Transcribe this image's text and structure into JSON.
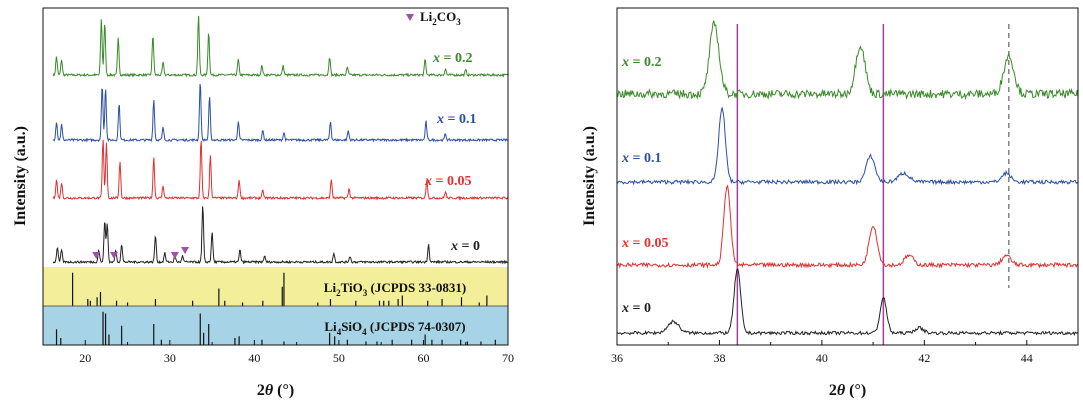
{
  "chart_data": [
    {
      "type": "line",
      "panel": "left",
      "xlabel_prefix": "2",
      "xlabel_italic": "θ",
      "xlabel_suffix": " (°)",
      "ylabel": "Intensity (a.u.)",
      "xlim": [
        15,
        70
      ],
      "xticks": [
        "20",
        "30",
        "40",
        "50",
        "60",
        "70"
      ],
      "legend": [
        {
          "marker": "▼",
          "label": "Li",
          "sub1": "2",
          "mid": "CO",
          "sub2": "3",
          "color": "#a24fa8"
        }
      ],
      "series": [
        {
          "name": "x = 0.2",
          "label_var": "x",
          "label_val": " = 0.2",
          "color": "#3a8a2a",
          "peaks": [
            [
              16.6,
              0.3
            ],
            [
              17.2,
              0.25
            ],
            [
              21.9,
              0.9
            ],
            [
              22.3,
              0.85
            ],
            [
              23.9,
              0.6
            ],
            [
              28.0,
              0.65
            ],
            [
              29.2,
              0.2
            ],
            [
              33.4,
              0.95
            ],
            [
              34.6,
              0.7
            ],
            [
              38.1,
              0.25
            ],
            [
              40.9,
              0.15
            ],
            [
              43.4,
              0.15
            ],
            [
              48.9,
              0.3
            ],
            [
              51.0,
              0.12
            ],
            [
              60.2,
              0.25
            ],
            [
              62.6,
              0.1
            ],
            [
              65.0,
              0.08
            ]
          ]
        },
        {
          "name": "x = 0.1",
          "label_var": "x",
          "label_val": " = 0.1",
          "color": "#2a4fa5",
          "peaks": [
            [
              16.6,
              0.3
            ],
            [
              17.2,
              0.25
            ],
            [
              22.0,
              0.9
            ],
            [
              22.4,
              0.85
            ],
            [
              24.0,
              0.6
            ],
            [
              28.1,
              0.65
            ],
            [
              29.2,
              0.2
            ],
            [
              33.6,
              0.95
            ],
            [
              34.7,
              0.7
            ],
            [
              38.1,
              0.3
            ],
            [
              41.0,
              0.15
            ],
            [
              43.5,
              0.12
            ],
            [
              49.0,
              0.3
            ],
            [
              51.1,
              0.15
            ],
            [
              60.3,
              0.3
            ],
            [
              62.6,
              0.1
            ]
          ]
        },
        {
          "name": "x = 0.05",
          "label_var": "x",
          "label_val": " = 0.05",
          "color": "#e03030",
          "peaks": [
            [
              16.6,
              0.3
            ],
            [
              17.2,
              0.25
            ],
            [
              22.1,
              0.95
            ],
            [
              22.5,
              0.9
            ],
            [
              24.1,
              0.6
            ],
            [
              28.1,
              0.65
            ],
            [
              29.2,
              0.2
            ],
            [
              33.7,
              0.95
            ],
            [
              34.8,
              0.7
            ],
            [
              38.2,
              0.3
            ],
            [
              41.0,
              0.12
            ],
            [
              49.1,
              0.3
            ],
            [
              51.2,
              0.15
            ],
            [
              60.4,
              0.3
            ],
            [
              62.6,
              0.1
            ]
          ]
        },
        {
          "name": "x = 0",
          "label_var": "x",
          "label_val": " = 0",
          "color": "#222222",
          "peaks": [
            [
              16.7,
              0.25
            ],
            [
              17.2,
              0.2
            ],
            [
              21.6,
              0.2
            ],
            [
              22.3,
              0.7
            ],
            [
              22.6,
              0.65
            ],
            [
              23.6,
              0.2
            ],
            [
              24.3,
              0.3
            ],
            [
              28.3,
              0.45
            ],
            [
              29.4,
              0.15
            ],
            [
              30.6,
              0.1
            ],
            [
              31.5,
              0.1
            ],
            [
              33.9,
              0.95
            ],
            [
              35.0,
              0.5
            ],
            [
              38.3,
              0.2
            ],
            [
              41.2,
              0.1
            ],
            [
              49.4,
              0.15
            ],
            [
              51.3,
              0.1
            ],
            [
              60.6,
              0.3
            ]
          ]
        }
      ],
      "li2co3_markers_2theta": [
        21.3,
        23.4,
        30.6,
        31.8
      ],
      "reference_bands": [
        {
          "label_pre": "Li",
          "sub1": "2",
          "mid": "TiO",
          "sub2": "3",
          "label_post": " (JCPDS 33-0831)",
          "fill": "#f2ee9a",
          "sticks": [
            [
              18.5,
              0.95
            ],
            [
              20.3,
              0.2
            ],
            [
              20.6,
              0.15
            ],
            [
              21.4,
              0.25
            ],
            [
              21.8,
              0.4
            ],
            [
              23.7,
              0.15
            ],
            [
              25.0,
              0.1
            ],
            [
              28.3,
              0.2
            ],
            [
              32.7,
              0.15
            ],
            [
              35.8,
              0.5
            ],
            [
              36.5,
              0.15
            ],
            [
              38.6,
              0.1
            ],
            [
              41.0,
              0.15
            ],
            [
              43.3,
              0.55
            ],
            [
              43.5,
              0.95
            ],
            [
              47.5,
              0.1
            ],
            [
              49.0,
              0.2
            ],
            [
              52.0,
              0.15
            ],
            [
              54.8,
              0.15
            ],
            [
              55.3,
              0.15
            ],
            [
              55.9,
              0.15
            ],
            [
              57.0,
              0.2
            ],
            [
              57.5,
              0.3
            ],
            [
              60.5,
              0.15
            ],
            [
              62.2,
              0.2
            ],
            [
              64.5,
              0.25
            ],
            [
              66.6,
              0.1
            ],
            [
              67.5,
              0.3
            ]
          ]
        },
        {
          "label_pre": "Li",
          "sub1": "4",
          "mid": "SiO",
          "sub2": "4",
          "label_post": " (JCPDS 74-0307)",
          "fill": "#a6d4e6",
          "sticks": [
            [
              16.6,
              0.45
            ],
            [
              17.1,
              0.2
            ],
            [
              22.1,
              0.95
            ],
            [
              22.4,
              0.9
            ],
            [
              22.8,
              0.3
            ],
            [
              24.3,
              0.55
            ],
            [
              28.1,
              0.6
            ],
            [
              29.0,
              0.15
            ],
            [
              33.6,
              0.9
            ],
            [
              34.0,
              0.35
            ],
            [
              34.6,
              0.6
            ],
            [
              37.7,
              0.2
            ],
            [
              38.2,
              0.25
            ],
            [
              40.9,
              0.15
            ],
            [
              43.5,
              0.1
            ],
            [
              48.9,
              0.35
            ],
            [
              49.5,
              0.25
            ],
            [
              51.0,
              0.15
            ],
            [
              53.2,
              0.1
            ],
            [
              54.5,
              0.1
            ],
            [
              56.3,
              0.15
            ],
            [
              58.6,
              0.15
            ],
            [
              60.2,
              0.3
            ],
            [
              61.0,
              0.15
            ],
            [
              62.2,
              0.15
            ],
            [
              64.4,
              0.15
            ],
            [
              65.2,
              0.1
            ],
            [
              66.8,
              0.1
            ],
            [
              68.5,
              0.15
            ]
          ]
        }
      ]
    },
    {
      "type": "line",
      "panel": "right",
      "xlabel_prefix": "2",
      "xlabel_italic": "θ",
      "xlabel_suffix": " (°)",
      "ylabel": "Intensity (a.u.)",
      "xlim": [
        36,
        45
      ],
      "xticks": [
        "36",
        "38",
        "40",
        "42",
        "44"
      ],
      "vlines_2theta": [
        38.35,
        41.2
      ],
      "vline_color": "#a0409e",
      "dashed_vline_2theta": 43.65,
      "series": [
        {
          "name": "x = 0.2",
          "label_var": "x",
          "label_val": " = 0.2",
          "color": "#3a8a2a",
          "peaks": [
            [
              37.9,
              1.0,
              0.13
            ],
            [
              40.75,
              0.7,
              0.13
            ],
            [
              43.65,
              0.55,
              0.14
            ]
          ]
        },
        {
          "name": "x = 0.1",
          "label_var": "x",
          "label_val": " = 0.1",
          "color": "#2a4fa5",
          "peaks": [
            [
              38.05,
              1.0,
              0.09
            ],
            [
              40.95,
              0.35,
              0.12
            ],
            [
              41.6,
              0.12,
              0.15
            ],
            [
              43.6,
              0.12,
              0.12
            ]
          ]
        },
        {
          "name": "x = 0.05",
          "label_var": "x",
          "label_val": " = 0.05",
          "color": "#e03030",
          "peaks": [
            [
              38.15,
              1.0,
              0.09
            ],
            [
              41.0,
              0.5,
              0.11
            ],
            [
              41.7,
              0.12,
              0.12
            ],
            [
              43.6,
              0.12,
              0.12
            ]
          ]
        },
        {
          "name": "x = 0",
          "label_var": "x",
          "label_val": " = 0",
          "color": "#222222",
          "peaks": [
            [
              37.1,
              0.18,
              0.15
            ],
            [
              38.35,
              1.0,
              0.09
            ],
            [
              41.2,
              0.55,
              0.09
            ],
            [
              41.9,
              0.08,
              0.12
            ]
          ]
        }
      ]
    }
  ]
}
